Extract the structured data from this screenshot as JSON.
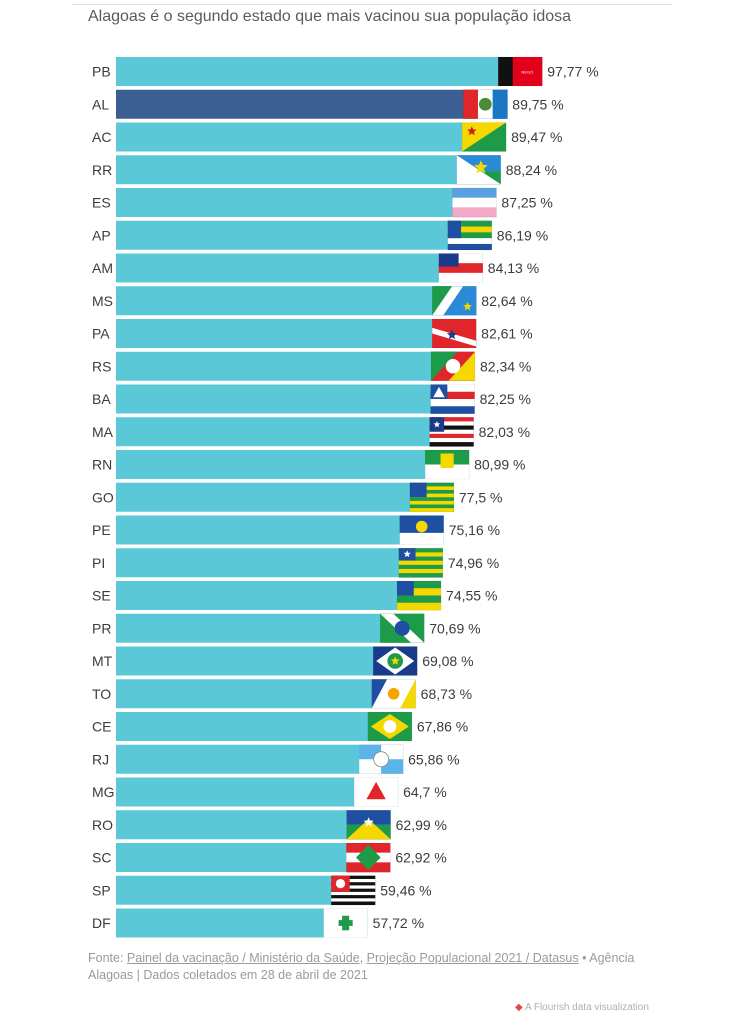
{
  "chart_data": {
    "type": "bar",
    "orientation": "horizontal",
    "title": "Alagoas é o segundo estado que mais vacinou sua população idosa",
    "categories": [
      "PB",
      "AL",
      "AC",
      "RR",
      "ES",
      "AP",
      "AM",
      "MS",
      "PA",
      "RS",
      "BA",
      "MA",
      "RN",
      "GO",
      "PE",
      "PI",
      "SE",
      "PR",
      "MT",
      "TO",
      "CE",
      "RJ",
      "MG",
      "RO",
      "SC",
      "SP",
      "DF"
    ],
    "values": [
      97.77,
      89.75,
      89.47,
      88.24,
      87.25,
      86.19,
      84.13,
      82.64,
      82.61,
      82.34,
      82.25,
      82.03,
      80.99,
      77.5,
      75.16,
      74.96,
      74.55,
      70.69,
      69.08,
      68.73,
      67.86,
      65.86,
      64.7,
      62.99,
      62.92,
      59.46,
      57.72
    ],
    "value_labels": [
      "97,77 %",
      "89,75 %",
      "89,47 %",
      "88,24 %",
      "87,25 %",
      "86,19 %",
      "84,13 %",
      "82,64 %",
      "82,61 %",
      "82,34 %",
      "82,25 %",
      "82,03 %",
      "80,99 %",
      "77,5 %",
      "75,16 %",
      "74,96 %",
      "74,55 %",
      "70,69 %",
      "69,08 %",
      "68,73 %",
      "67,86 %",
      "65,86 %",
      "64,7 %",
      "62,99 %",
      "62,92 %",
      "59,46 %",
      "57,72 %"
    ],
    "highlight": "AL",
    "colors": {
      "bar": "#5bc8d8",
      "highlight": "#3b5f92",
      "label": "#3c3c3c"
    },
    "xlim": [
      0,
      100
    ],
    "grid": false,
    "legend": "none",
    "flag_icons": [
      "paraiba-flag-icon",
      "alagoas-flag-icon",
      "acre-flag-icon",
      "roraima-flag-icon",
      "espirito-santo-flag-icon",
      "amapa-flag-icon",
      "amazonas-flag-icon",
      "mato-grosso-do-sul-flag-icon",
      "para-flag-icon",
      "rio-grande-do-sul-flag-icon",
      "bahia-flag-icon",
      "maranhao-flag-icon",
      "rio-grande-do-norte-flag-icon",
      "goias-flag-icon",
      "pernambuco-flag-icon",
      "piaui-flag-icon",
      "sergipe-flag-icon",
      "parana-flag-icon",
      "mato-grosso-flag-icon",
      "tocantins-flag-icon",
      "ceara-flag-icon",
      "rio-de-janeiro-flag-icon",
      "minas-gerais-flag-icon",
      "rondonia-flag-icon",
      "santa-catarina-flag-icon",
      "sao-paulo-flag-icon",
      "distrito-federal-flag-icon"
    ]
  },
  "footer": {
    "prefix": "Fonte: ",
    "source_1": "Painel da vacinação / Ministério da Saúde",
    "separator": ", ",
    "source_2": "Projeção Populacional 2021 / Datasus",
    "suffix": " • Agência Alagoas | Dados coletados em 28 de abril de 2021"
  },
  "corner_text": "A Flourish data visualization"
}
